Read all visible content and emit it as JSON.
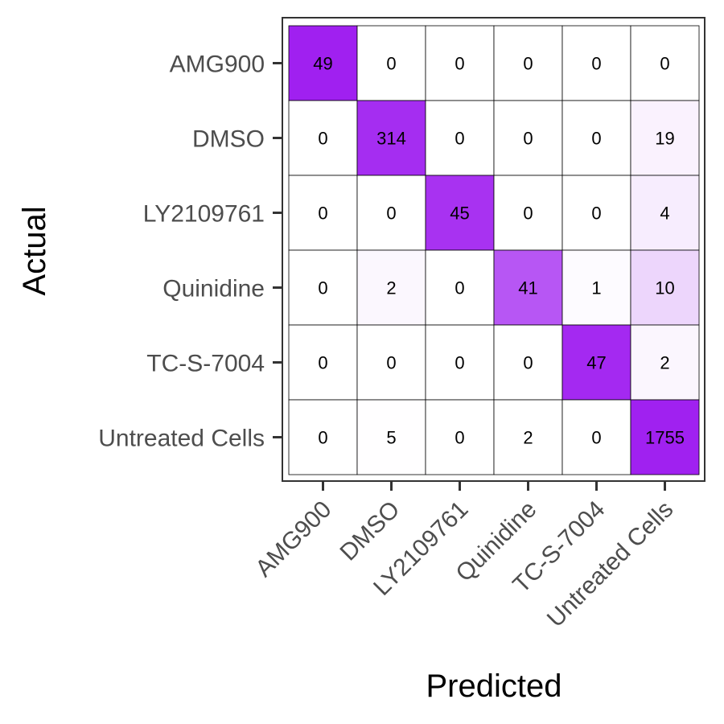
{
  "chart_data": {
    "type": "heatmap",
    "xlabel": "Predicted",
    "ylabel": "Actual",
    "x_categories": [
      "AMG900",
      "DMSO",
      "LY2109761",
      "Quinidine",
      "TC-S-7004",
      "Untreated Cells"
    ],
    "y_categories": [
      "AMG900",
      "DMSO",
      "LY2109761",
      "Quinidine",
      "TC-S-7004",
      "Untreated Cells"
    ],
    "values": [
      [
        49,
        0,
        0,
        0,
        0,
        0
      ],
      [
        0,
        314,
        0,
        0,
        0,
        19
      ],
      [
        0,
        0,
        45,
        0,
        0,
        4
      ],
      [
        0,
        2,
        0,
        41,
        1,
        10
      ],
      [
        0,
        0,
        0,
        0,
        47,
        2
      ],
      [
        0,
        5,
        0,
        2,
        0,
        1755
      ]
    ],
    "color_scale": {
      "type": "row-normalized",
      "low": "#ffffff",
      "high": "#a020f0"
    },
    "grid": true,
    "legend": "none"
  }
}
